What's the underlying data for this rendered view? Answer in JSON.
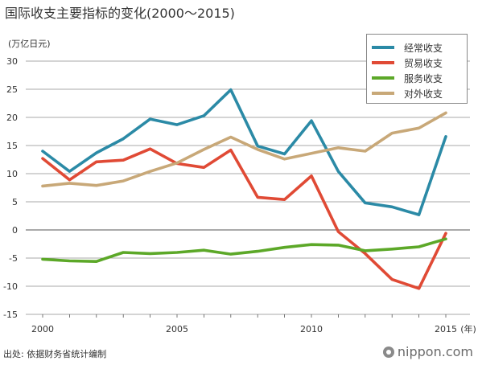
{
  "header": {
    "title": "国际收支主要指标的变化(2000〜2015)",
    "unit": "(万亿日元)"
  },
  "footer": {
    "source": "出处: 依据财务省统计编制",
    "brand_logo": "nippon.com"
  },
  "chart_data": {
    "type": "line",
    "title": "国际收支主要指标的变化(2000〜2015)",
    "ylabel": "(万亿日元)",
    "xlabel": "(年)",
    "x": [
      2000,
      2001,
      2002,
      2003,
      2004,
      2005,
      2006,
      2007,
      2008,
      2009,
      2010,
      2011,
      2012,
      2013,
      2014,
      2015
    ],
    "x_tick_labels": [
      "2000",
      "2005",
      "2010",
      "2015"
    ],
    "x_tick_values": [
      2000,
      2005,
      2010,
      2015
    ],
    "y_ticks": [
      30,
      25,
      20,
      15,
      10,
      5,
      0,
      -5,
      -10,
      -15
    ],
    "ylim": [
      -15,
      30
    ],
    "grid": "horizontal",
    "legend_position": "top-right",
    "series": [
      {
        "name": "经常收支",
        "color": "#2b8aa6",
        "values": [
          14.0,
          10.4,
          13.7,
          16.2,
          19.7,
          18.7,
          20.3,
          24.9,
          14.9,
          13.5,
          19.4,
          10.4,
          4.8,
          4.1,
          2.7,
          16.6
        ]
      },
      {
        "name": "贸易收支",
        "color": "#e04a35",
        "values": [
          12.7,
          8.9,
          12.1,
          12.4,
          14.4,
          11.8,
          11.1,
          14.2,
          5.8,
          5.4,
          9.6,
          -0.3,
          -4.2,
          -8.8,
          -10.4,
          -0.6
        ]
      },
      {
        "name": "服务收支",
        "color": "#5ca828",
        "values": [
          -5.2,
          -5.5,
          -5.6,
          -4.0,
          -4.2,
          -4.0,
          -3.6,
          -4.3,
          -3.8,
          -3.1,
          -2.6,
          -2.7,
          -3.7,
          -3.4,
          -3.0,
          -1.6
        ]
      },
      {
        "name": "对外收支",
        "color": "#c8a878",
        "values": [
          7.8,
          8.3,
          7.9,
          8.7,
          10.4,
          11.9,
          14.3,
          16.5,
          14.3,
          12.6,
          13.6,
          14.6,
          14.0,
          17.2,
          18.1,
          20.8
        ]
      }
    ]
  }
}
